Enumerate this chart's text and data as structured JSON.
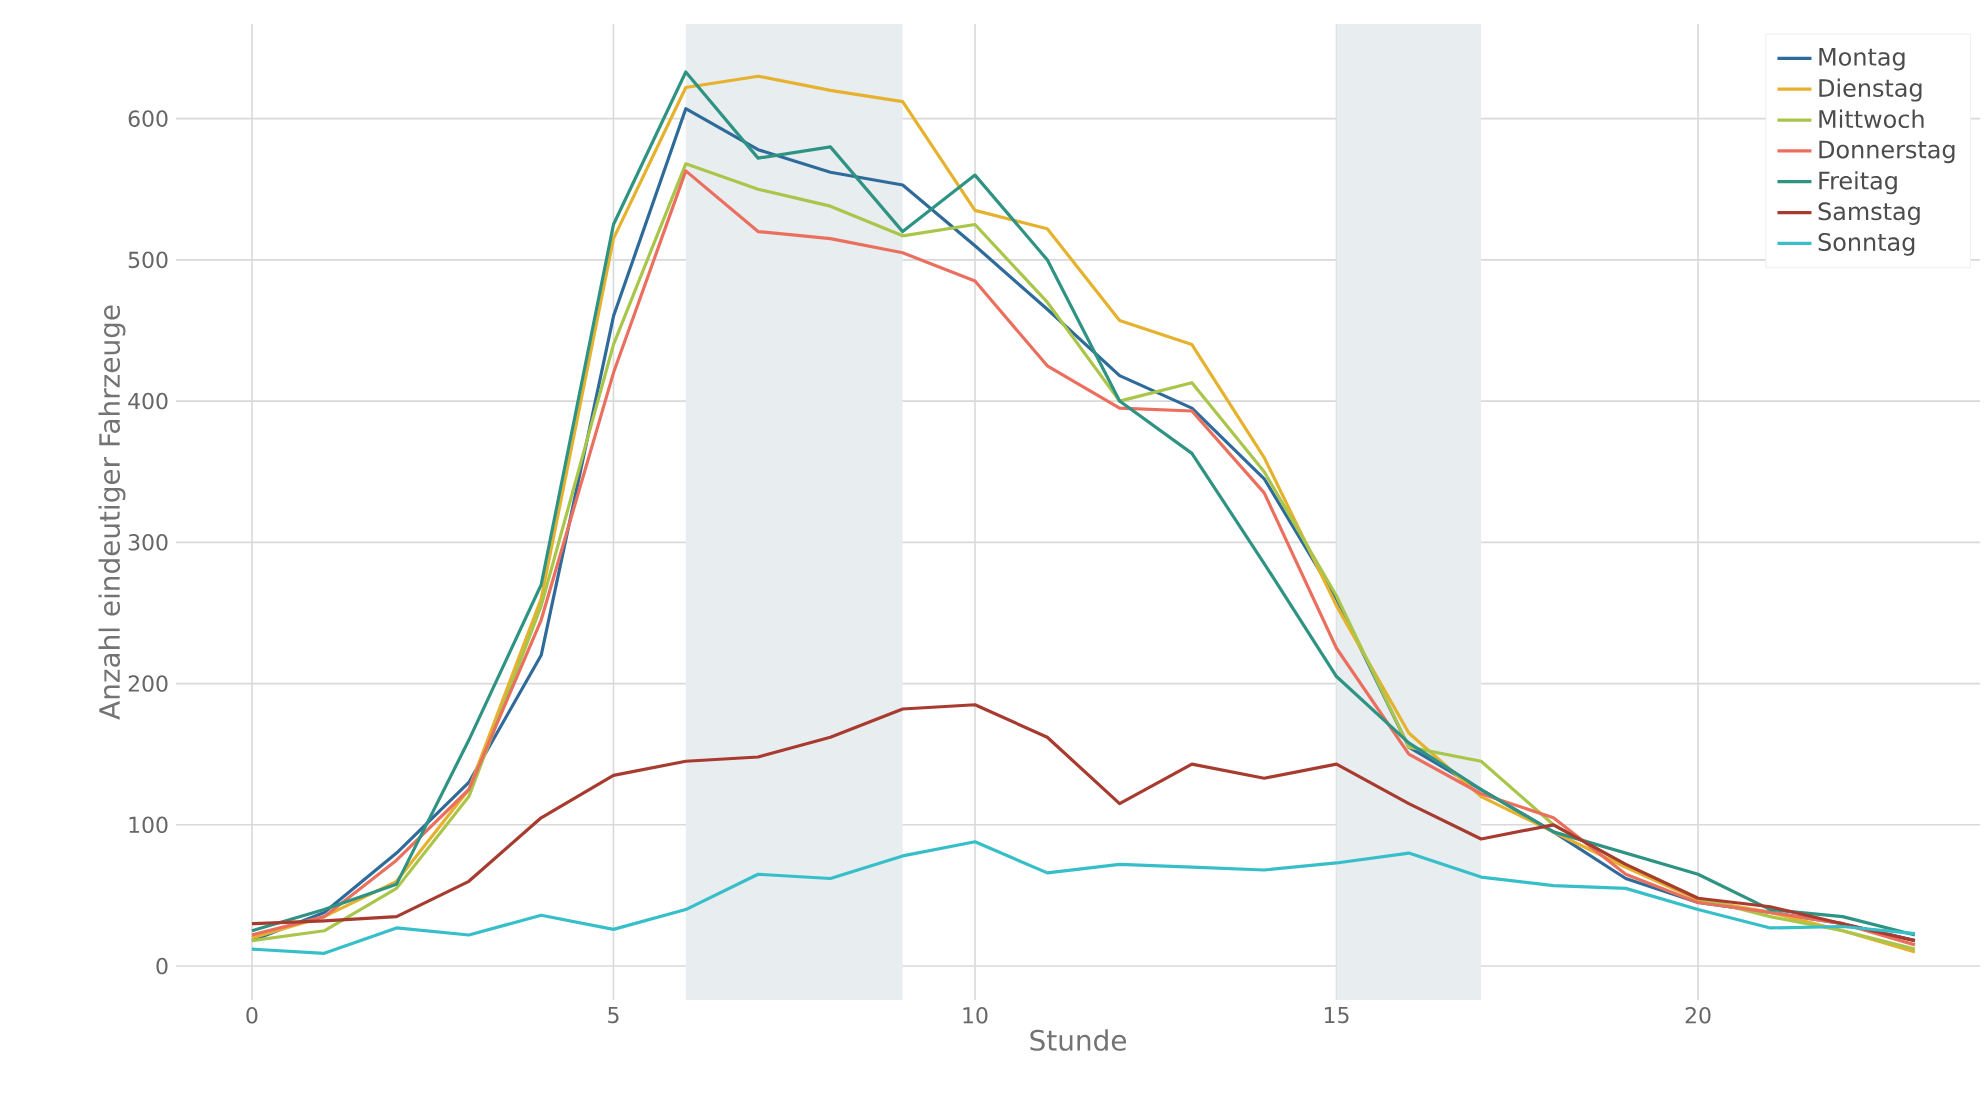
{
  "chart_data": {
    "type": "line",
    "xlabel": "Stunde",
    "ylabel": "Anzahl eindeutiger Fahrzeuge",
    "x": [
      0,
      1,
      2,
      3,
      4,
      5,
      6,
      7,
      8,
      9,
      10,
      11,
      12,
      13,
      14,
      15,
      16,
      17,
      18,
      19,
      20,
      21,
      22,
      23
    ],
    "series": [
      {
        "name": "Montag",
        "color": "#2f6b9a",
        "values": [
          18,
          38,
          80,
          130,
          220,
          460,
          607,
          578,
          562,
          553,
          510,
          465,
          418,
          395,
          345,
          260,
          155,
          125,
          95,
          62,
          45,
          38,
          30,
          18
        ]
      },
      {
        "name": "Dienstag",
        "color": "#e6b22e",
        "values": [
          20,
          35,
          60,
          125,
          260,
          515,
          622,
          630,
          620,
          612,
          535,
          522,
          457,
          440,
          360,
          255,
          165,
          120,
          95,
          70,
          47,
          38,
          25,
          10
        ]
      },
      {
        "name": "Mittwoch",
        "color": "#a9c64a",
        "values": [
          18,
          25,
          55,
          120,
          255,
          440,
          568,
          550,
          538,
          517,
          525,
          470,
          400,
          413,
          350,
          262,
          155,
          145,
          100,
          72,
          48,
          35,
          25,
          12
        ]
      },
      {
        "name": "Donnerstag",
        "color": "#eb6f5e",
        "values": [
          22,
          35,
          75,
          125,
          245,
          420,
          563,
          520,
          515,
          505,
          485,
          425,
          395,
          393,
          335,
          225,
          150,
          122,
          105,
          65,
          45,
          38,
          30,
          15
        ]
      },
      {
        "name": "Freitag",
        "color": "#2e9383",
        "values": [
          25,
          40,
          58,
          160,
          270,
          525,
          633,
          572,
          580,
          520,
          560,
          500,
          400,
          363,
          285,
          205,
          158,
          125,
          95,
          80,
          65,
          40,
          35,
          22
        ]
      },
      {
        "name": "Samstag",
        "color": "#a83b2f",
        "values": [
          30,
          32,
          35,
          60,
          105,
          135,
          145,
          148,
          162,
          182,
          185,
          162,
          115,
          143,
          133,
          143,
          115,
          90,
          100,
          72,
          48,
          42,
          30,
          18
        ]
      },
      {
        "name": "Sonntag",
        "color": "#36bfc9",
        "values": [
          12,
          9,
          27,
          22,
          36,
          26,
          40,
          65,
          62,
          78,
          88,
          66,
          72,
          70,
          68,
          73,
          80,
          63,
          57,
          55,
          40,
          27,
          28,
          23
        ]
      }
    ],
    "xlim": [
      -1.05,
      23.9
    ],
    "ylim": [
      -24,
      667
    ],
    "xticks": [
      0,
      5,
      10,
      15,
      20
    ],
    "yticks": [
      0,
      100,
      200,
      300,
      400,
      500,
      600
    ],
    "bands": [
      {
        "axis": "x",
        "from": 6,
        "to": 9,
        "color": "#e8edf0"
      },
      {
        "axis": "x",
        "from": 15,
        "to": 17,
        "color": "#e8edf0"
      }
    ],
    "grid": true,
    "legend": "top right",
    "marker": "none",
    "line_style": "solid"
  }
}
